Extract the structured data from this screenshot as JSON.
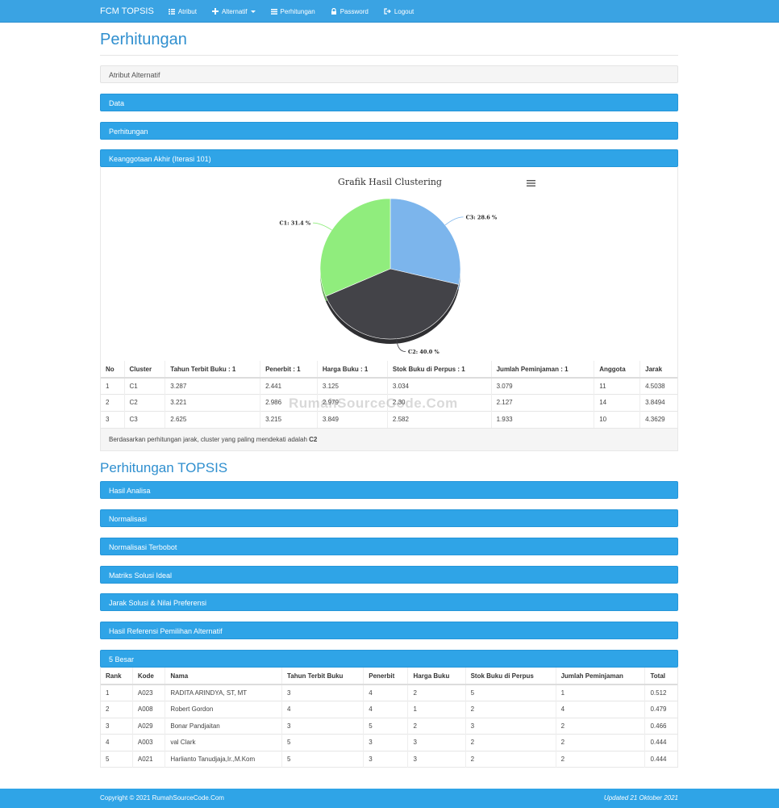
{
  "navbar": {
    "brand": "FCM TOPSIS",
    "items": [
      {
        "label": "Atribut",
        "icon": "grid-icon"
      },
      {
        "label": "Alternatif",
        "icon": "plus-icon"
      },
      {
        "label": "Perhitungan",
        "icon": "list-icon"
      },
      {
        "label": "Password",
        "icon": "lock-icon"
      },
      {
        "label": "Logout",
        "icon": "logout-icon"
      }
    ]
  },
  "page_title": "Perhitungan",
  "panels_top": [
    {
      "label": "Atribut Alternatif"
    },
    {
      "label": "Data"
    },
    {
      "label": "Perhitungan"
    },
    {
      "label": "Keanggotaan Akhir (Iterasi 101)"
    }
  ],
  "chart_data": {
    "type": "pie",
    "title": "Grafik Hasil Clustering",
    "slices": [
      {
        "name": "C3",
        "value": 28.6,
        "label": "C3: 28.6 %",
        "color": "#7cb5ec"
      },
      {
        "name": "C2",
        "value": 40.0,
        "label": "C2: 40.0 %",
        "color": "#434348"
      },
      {
        "name": "C1",
        "value": 31.4,
        "label": "C1: 31.4 %",
        "color": "#90ed7d"
      }
    ]
  },
  "cluster_table": {
    "headers": [
      "No",
      "Cluster",
      "Tahun Terbit Buku : 1",
      "Penerbit : 1",
      "Harga Buku : 1",
      "Stok Buku di Perpus : 1",
      "Jumlah Peminjaman : 1",
      "Anggota",
      "Jarak"
    ],
    "rows": [
      [
        "1",
        "C1",
        "3.287",
        "2.441",
        "3.125",
        "3.034",
        "3.079",
        "11",
        "4.5038"
      ],
      [
        "2",
        "C2",
        "3.221",
        "2.986",
        "2.979",
        "2.30",
        "2.127",
        "14",
        "3.8494"
      ],
      [
        "3",
        "C3",
        "2.625",
        "3.215",
        "3.849",
        "2.582",
        "1.933",
        "10",
        "4.3629"
      ]
    ]
  },
  "cluster_note": {
    "text": "Berdasarkan perhitungan jarak, cluster yang paling mendekati adalah ",
    "result": "C2"
  },
  "watermark": "RumahSourceCode.Com",
  "topsis_title": "Perhitungan TOPSIS",
  "panels_topsis": [
    {
      "label": "Hasil Analisa"
    },
    {
      "label": "Normalisasi"
    },
    {
      "label": "Normalisasi Terbobot"
    },
    {
      "label": "Matriks Solusi Ideal"
    },
    {
      "label": "Jarak Solusi & Nilai Preferensi"
    },
    {
      "label": "Hasil Referensi Pemilihan Alternatif"
    },
    {
      "label": "5 Besar"
    }
  ],
  "rank_table": {
    "headers": [
      "Rank",
      "Kode",
      "Nama",
      "Tahun Terbit Buku",
      "Penerbit",
      "Harga Buku",
      "Stok Buku di Perpus",
      "Jumlah Peminjaman",
      "Total"
    ],
    "rows": [
      [
        "1",
        "A023",
        "RADITA ARINDYA, ST, MT",
        "3",
        "4",
        "2",
        "5",
        "1",
        "0.512"
      ],
      [
        "2",
        "A008",
        "Robert Gordon",
        "4",
        "4",
        "1",
        "2",
        "4",
        "0.479"
      ],
      [
        "3",
        "A029",
        "Bonar Pandjaitan",
        "3",
        "5",
        "2",
        "3",
        "2",
        "0.466"
      ],
      [
        "4",
        "A003",
        "val Clark",
        "5",
        "3",
        "3",
        "2",
        "2",
        "0.444"
      ],
      [
        "5",
        "A021",
        "Harlianto Tanudjaja,Ir.,M.Kom",
        "5",
        "3",
        "3",
        "2",
        "2",
        "0.444"
      ]
    ]
  },
  "footer": {
    "copyright": "Copyright © 2021 RumahSourceCode.Com",
    "updated": "Updated 21 Oktober 2021"
  }
}
